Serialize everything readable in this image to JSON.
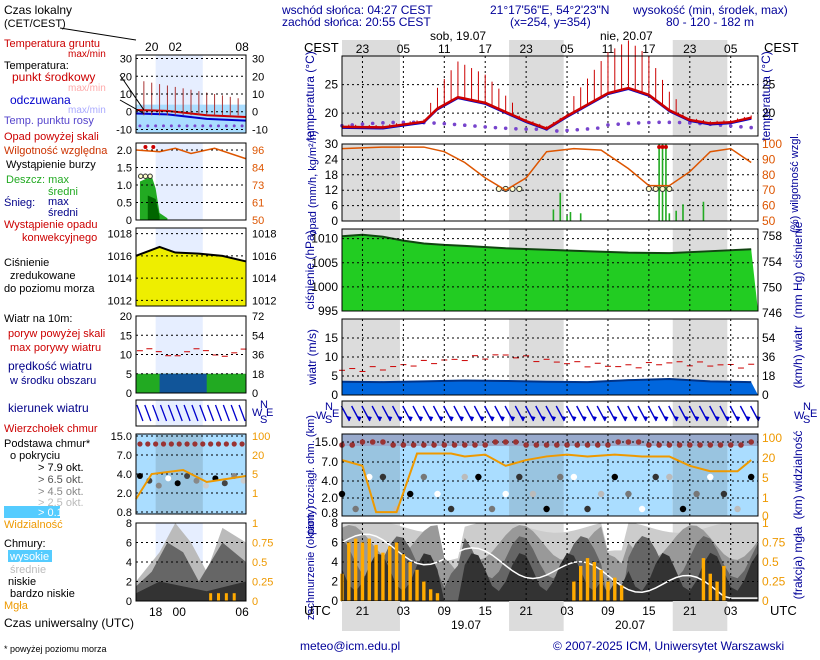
{
  "header": {
    "sunrise": "wschód słońca: 04:27 CEST",
    "sunset": "zachód słońca: 20:55 CEST",
    "coords": "21°17'56\"E, 54°2'23\"N",
    "grid": "(x=254,  y=354)",
    "height_label": "wysokość (min, środek, max)",
    "height_values": "80 - 120 - 182 m"
  },
  "colors": {
    "temp_red": "#cc0000",
    "feel_blue": "#0000cc",
    "dew_purple": "#7744cc",
    "humidity_orange": "#dd5500",
    "precip_green": "#22aa22",
    "pressure_green": "#22cc22",
    "wind_blue": "#0066dd",
    "wind_dark": "#003388",
    "night_band": "#dcdcdc",
    "cloud_bg": "#aaddff",
    "vis_orange": "#ee9900",
    "dotted_grid": "#000000",
    "axis_blue": "#000099"
  },
  "legend": {
    "time_title": "Czas lokalny",
    "time_sub": "(CET/CEST)",
    "time_ticks": [
      "20",
      "02",
      "08"
    ],
    "ground_temp": "Temperatura gruntu",
    "ground_temp_sub": "max/min",
    "temperature": "Temperatura:",
    "mid_point": "punkt środkowy",
    "mid_point_sub": "max/min",
    "feels": "odczuwana",
    "feels_sub": "max/min",
    "dew": "Temp. punktu rosy",
    "temp_ticks": [
      "30",
      "20",
      "10",
      "0",
      "-10"
    ],
    "precip_above": "Opad powyżej skali",
    "humidity": "Wilgotność względna",
    "storm": "Wystąpienie burzy",
    "snow_rain": "Deszcz: max",
    "rain_avg": "średni",
    "snow": "Śnieg:",
    "snow_max": "max",
    "snow_avg": "średni",
    "convective": "Wystąpienie opadu",
    "convective2": "konwekcyjnego",
    "precip_ticks": [
      "2.0",
      "1.5",
      "1.0",
      "0.5",
      "0"
    ],
    "hum_ticks": [
      "96",
      "84",
      "73",
      "61",
      "50"
    ],
    "pressure_title": "Ciśnienie",
    "pressure_sub1": "zredukowane",
    "pressure_sub2": "do poziomu morza",
    "pressure_ticks": [
      "1018",
      "1016",
      "1014",
      "1012"
    ],
    "wind_title": "Wiatr na 10m:",
    "gust_above": "poryw powyżej skali",
    "gust_max": "max porywy wiatru",
    "wind_avg": "prędkość wiatru",
    "wind_avg2": "w środku obszaru",
    "wind_ticks_left": [
      "20",
      "15",
      "10",
      "5",
      "0"
    ],
    "wind_ticks_right": [
      "72",
      "54",
      "36",
      "18",
      "0"
    ],
    "wind_dir": "kierunek wiatru",
    "cloud_top": "Wierzchołek chmur",
    "cloud_base": "Podstawa chmur*",
    "cloud_base2": "o pokryciu",
    "okt1": "> 7.9 okt.",
    "okt2": "> 6.5 okt.",
    "okt3": "> 4.5 okt.",
    "okt4": "> 2.5 okt.",
    "okt5": "> 0.1 okt.",
    "cloud_ticks": [
      "15.0",
      "7.0",
      "4.0",
      "2.0",
      "0.8"
    ],
    "vis_ticks": [
      "100",
      "20",
      "5",
      "1"
    ],
    "visibility": "Widzialność",
    "clouds": "Chmury:",
    "high": "wysokie",
    "mid": "średnie",
    "low": "niskie",
    "very_low": "bardzo niskie",
    "fog": "Mgła",
    "cover_ticks": [
      "8",
      "6",
      "4",
      "2",
      "0"
    ],
    "fog_ticks": [
      "1",
      "0.75",
      "0.5",
      "0.25",
      "0"
    ],
    "utc_ticks": [
      "18",
      "00",
      "06"
    ],
    "utc": "Czas uniwersalny (UTC)",
    "footnote": "* powyżej poziomu morza"
  },
  "main": {
    "cest": "CEST",
    "utc": "UTC",
    "day1": "sob, 19.07",
    "day2": "nie, 20.07",
    "date1": "19.07",
    "date2": "20.07",
    "top_ticks": [
      "23",
      "05",
      "11",
      "17",
      "23",
      "05",
      "11",
      "17",
      "23",
      "05"
    ],
    "bottom_ticks": [
      "21",
      "03",
      "09",
      "15",
      "21",
      "03",
      "09",
      "15",
      "21",
      "03"
    ],
    "temp_label": "temperatura (°C)",
    "temp_ticks": [
      "25",
      "20"
    ],
    "precip_label": "opad (mm/h, kg/m²/h)",
    "precip_ticks": [
      "30",
      "24",
      "18",
      "12",
      "6",
      "0"
    ],
    "hum_label": "(%) wilgotność wzgl.",
    "hum_ticks": [
      "100",
      "90",
      "80",
      "70",
      "60",
      "50"
    ],
    "press_label": "ciśnienie (hPa)",
    "press_ticks": [
      "1010",
      "1005",
      "1000",
      "995"
    ],
    "mmhg_label": "(mm Hg) ciśnienie",
    "mmhg_ticks": [
      "758",
      "754",
      "750",
      "746"
    ],
    "wind_label": "wiatr (m/s)",
    "wind_ticks": [
      "15",
      "10",
      "5",
      "0"
    ],
    "kmh_label": "(km/h) wiatr",
    "kmh_ticks": [
      "54",
      "36",
      "18",
      "0"
    ],
    "compass_n": "N",
    "compass_w": "W",
    "compass_s": "S",
    "compass_e": "E",
    "cloud_label": "pion. rozciągł. chm. (km)",
    "cloud_ticks": [
      "15.0",
      "7.0",
      "4.0",
      "2.0",
      "0.8"
    ],
    "vis_label": "(km) widzialność",
    "vis_ticks": [
      "100",
      "20",
      "5",
      "1",
      "0"
    ],
    "cover_label": "zachmurzenie (oktanty)",
    "cover_ticks": [
      "8",
      "6",
      "4",
      "2",
      "0"
    ],
    "fog_label": "(frakcja) mgła",
    "fog_ticks": [
      "1",
      "0.75",
      "0.5",
      "0.25",
      "0"
    ]
  },
  "footer": {
    "email": "meteo@icm.edu.pl",
    "copyright": "© 2007-2025 ICM, Uniwersytet Warszawski"
  },
  "chart_data": [
    {
      "type": "line",
      "title": "temperatura",
      "ylabel": "temperatura (°C)",
      "x_unit": "hours from 19.07 20:00 CEST",
      "ylim": [
        16,
        30
      ],
      "series": [
        {
          "x": [
            0,
            6,
            12,
            14,
            17,
            21,
            27,
            30,
            33,
            36,
            39,
            42,
            45,
            48,
            51,
            54,
            57,
            60
          ],
          "values": [
            17.6,
            17.5,
            18.5,
            20.8,
            22.8,
            21.8,
            18.6,
            17.3,
            19.5,
            21.5,
            23.5,
            24.4,
            23.2,
            20.5,
            18.8,
            18.2,
            18.4,
            19.2
          ]
        }
      ]
    },
    {
      "type": "bar",
      "title": "opad",
      "ylabel": "opad (mm/h, kg/m²/h)",
      "x_unit": "hours from 19.07 20:00 CEST",
      "ylim": [
        0,
        30
      ],
      "x": [
        31,
        32,
        33,
        33.5,
        35,
        46.5,
        47,
        47.5,
        48,
        49,
        50,
        53
      ],
      "values": [
        4.5,
        11.0,
        2.0,
        3.5,
        3.0,
        30,
        30,
        30,
        3.0,
        4.0,
        6.5,
        7.5
      ]
    },
    {
      "type": "line",
      "title": "wilgotność wzgl.",
      "ylabel": "wilgotność wzgl. (%)",
      "x_unit": "hours from 19.07 20:00 CEST",
      "ylim": [
        50,
        100
      ],
      "series": [
        {
          "x": [
            0,
            6,
            12,
            15,
            18,
            21,
            24,
            27,
            30,
            34,
            38,
            42,
            45,
            48,
            51,
            54,
            57,
            60
          ],
          "values": [
            97,
            98,
            98,
            95,
            88,
            78,
            70,
            78,
            95,
            97,
            96,
            84,
            73,
            73,
            82,
            95,
            97,
            88
          ]
        }
      ]
    },
    {
      "type": "area",
      "title": "ciśnienie",
      "ylabel": "ciśnienie (hPa)",
      "x_unit": "hours from 19.07 20:00 CEST",
      "ylim": [
        995,
        1012
      ],
      "series": [
        {
          "x": [
            0,
            3,
            6,
            9,
            12,
            15,
            18,
            24,
            30,
            36,
            42,
            48,
            54,
            60
          ],
          "values": [
            1010.5,
            1010.8,
            1010.4,
            1009.6,
            1009.0,
            1008.7,
            1008.5,
            1008.0,
            1007.7,
            1007.4,
            1007.1,
            1007.0,
            1007.4,
            1007.8
          ]
        }
      ]
    },
    {
      "type": "area",
      "title": "wiatr",
      "ylabel": "wiatr (m/s)",
      "x_unit": "hours from 19.07 20:00 CEST",
      "ylim": [
        0,
        20
      ],
      "series": [
        {
          "name": "max porywy wiatru",
          "x": [
            0,
            6,
            12,
            18,
            24,
            30,
            36,
            42,
            48,
            54,
            60
          ],
          "values": [
            6.5,
            7.0,
            8.5,
            9.5,
            10.5,
            9.0,
            8.0,
            7.5,
            8.5,
            8.0,
            7.5
          ]
        },
        {
          "name": "prędkość wiatru",
          "x": [
            0,
            6,
            12,
            18,
            24,
            30,
            36,
            42,
            48,
            54,
            60
          ],
          "values": [
            3.5,
            3.4,
            3.6,
            3.8,
            3.7,
            3.5,
            3.4,
            3.9,
            4.2,
            3.6,
            3.4
          ]
        }
      ]
    },
    {
      "type": "line",
      "title": "widzialność",
      "ylabel": "widzialność (km)",
      "x_unit": "hours from 19.07 20:00 CEST",
      "ylim": [
        0,
        100
      ],
      "series": [
        {
          "x": [
            0,
            3,
            5,
            8,
            11,
            16,
            18,
            21,
            24,
            27,
            30,
            33,
            36,
            40,
            44,
            48,
            51,
            54,
            58,
            60
          ],
          "values": [
            20,
            14,
            0.8,
            0.8,
            30,
            30,
            25,
            28,
            14,
            20,
            25,
            28,
            25,
            28,
            25,
            25,
            14,
            10,
            10,
            20
          ]
        }
      ]
    },
    {
      "type": "bar",
      "title": "mgła",
      "ylabel": "mgła (frakcja)",
      "x_unit": "hours from 19.07 20:00 CEST",
      "ylim": [
        0,
        1
      ],
      "x": [
        0,
        1,
        2,
        3,
        4,
        5,
        6,
        7,
        8,
        9,
        10,
        11,
        12,
        13,
        14,
        34,
        35,
        36,
        37,
        38,
        39,
        40,
        41,
        53,
        54,
        55,
        56
      ],
      "values": [
        0.35,
        0.75,
        0.8,
        0.75,
        0.8,
        0.72,
        0.62,
        0.7,
        0.75,
        0.6,
        0.5,
        0.4,
        0.25,
        0.15,
        0.1,
        0.25,
        0.45,
        0.55,
        0.5,
        0.4,
        0.25,
        0.3,
        0.2,
        0.55,
        0.35,
        0.25,
        0.45
      ]
    }
  ]
}
